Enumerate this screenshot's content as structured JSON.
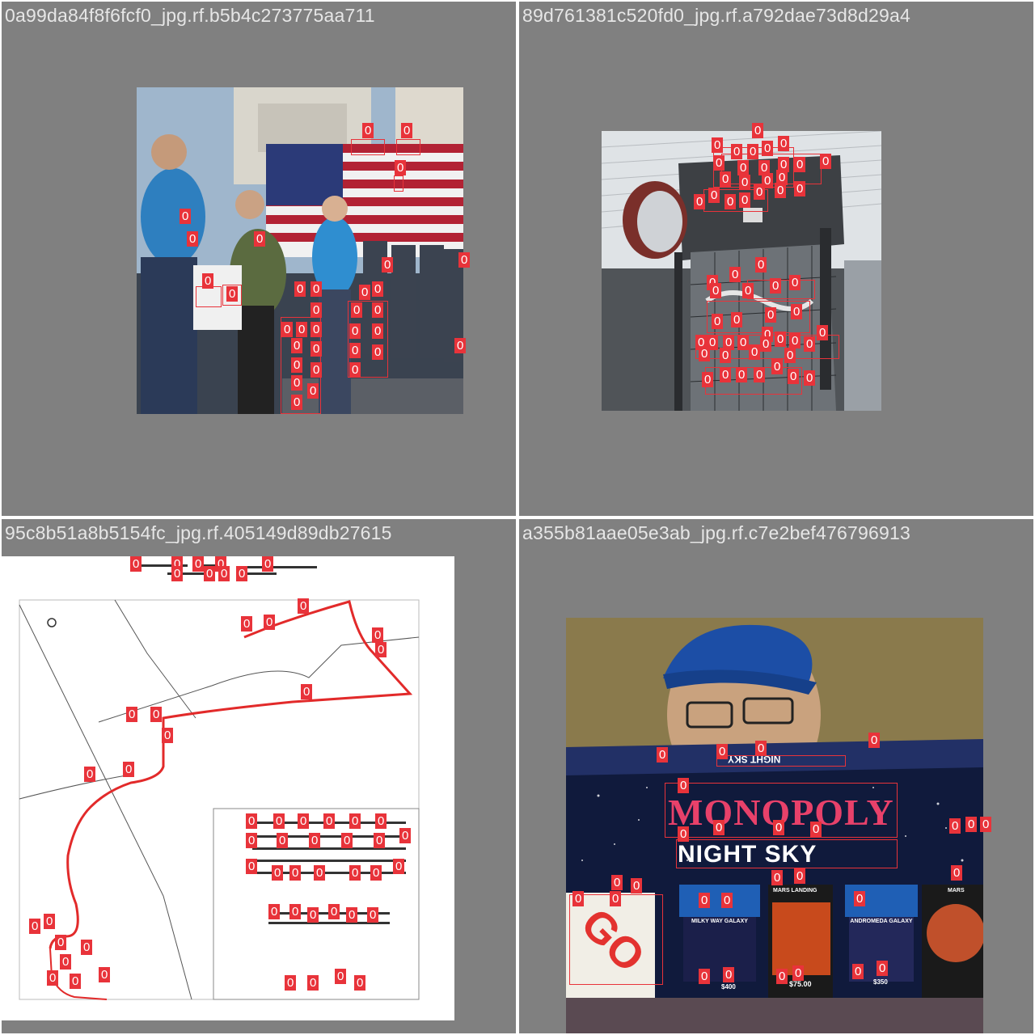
{
  "tiles": [
    {
      "caption": "0a99da84f8f6fcf0_jpg.rf.b5b4c273775aa711",
      "class_label": "0"
    },
    {
      "caption": "89d761381c520fd0_jpg.rf.a792dae73d8d29a4",
      "class_label": "0"
    },
    {
      "caption": "95c8b51a8b5154fc_jpg.rf.405149d89db27615",
      "class_label": "0"
    },
    {
      "caption": "a355b81aae05e3ab_jpg.rf.c7e2bef476796913",
      "class_label": "0"
    }
  ],
  "monopoly": {
    "logo": "MONOPOLY",
    "subtitle": "NIGHT SKY",
    "box_top_text": "NIGHT SKY",
    "spaces": [
      "MARS LANDING",
      "MILKY WAY GALAXY",
      "ANDROMEDA GALAXY",
      "MARS"
    ],
    "prices": [
      "$400",
      "$75.00",
      "$350"
    ],
    "go": "GO"
  },
  "colors": {
    "background": "#808080",
    "box_stroke": "#e8333a",
    "caption_text": "#e6e6e6",
    "route": "#e22a2a"
  }
}
